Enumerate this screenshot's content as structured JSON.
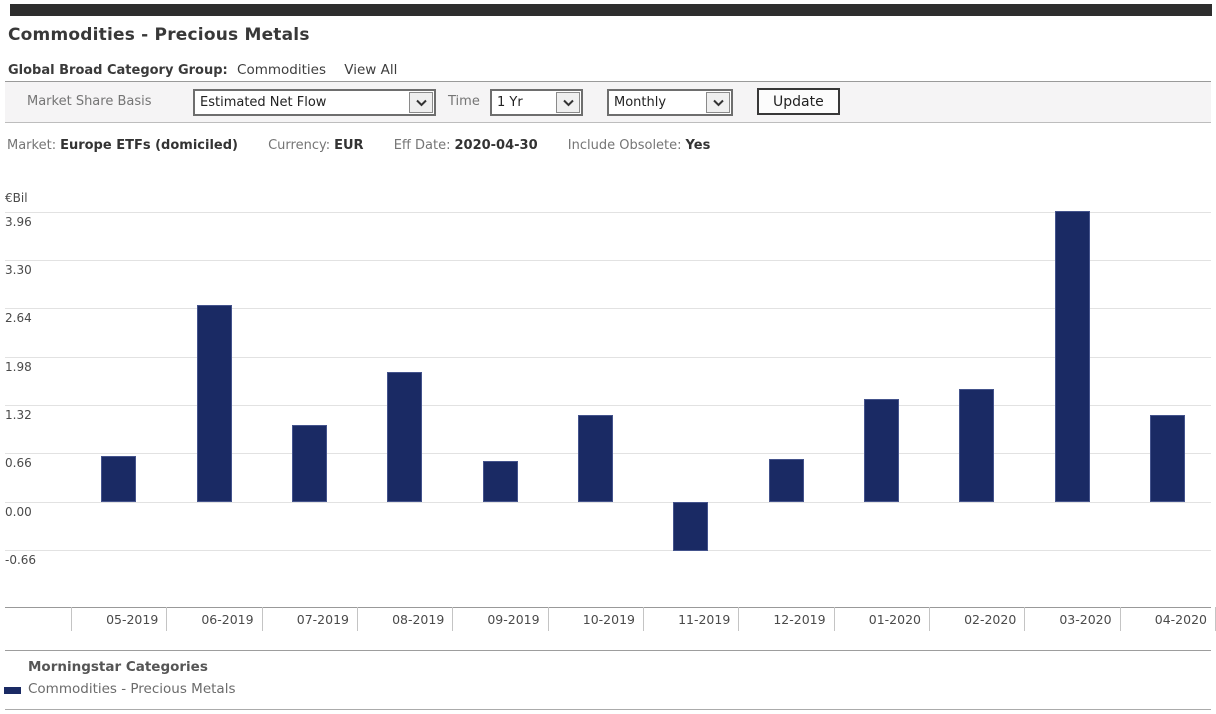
{
  "header": {
    "title": "Commodities - Precious Metals"
  },
  "breadcrumb": {
    "label": "Global Broad Category Group:",
    "value": "Commodities",
    "view_all": "View All"
  },
  "toolbar": {
    "market_share_basis_label": "Market Share Basis",
    "market_share_basis_value": "Estimated Net Flow",
    "time_label": "Time",
    "time_value": "1 Yr",
    "frequency_value": "Monthly",
    "update_label": "Update"
  },
  "info_bar": {
    "items": [
      {
        "label": "Market:",
        "value": "Europe ETFs (domiciled)"
      },
      {
        "label": "Currency:",
        "value": "EUR"
      },
      {
        "label": "Eff Date:",
        "value": "2020-04-30"
      },
      {
        "label": "Include Obsolete:",
        "value": "Yes"
      }
    ]
  },
  "chart_data": {
    "type": "bar",
    "title": "",
    "ylabel": "€Bil",
    "xlabel": "",
    "unit_label": "€Bil",
    "categories": [
      "05-2019",
      "06-2019",
      "07-2019",
      "08-2019",
      "09-2019",
      "10-2019",
      "11-2019",
      "12-2019",
      "01-2020",
      "02-2020",
      "03-2020",
      "04-2020"
    ],
    "series": [
      {
        "name": "Commodities - Precious Metals",
        "values": [
          0.62,
          2.68,
          1.05,
          1.77,
          0.55,
          1.19,
          -0.68,
          0.58,
          1.4,
          1.54,
          3.97,
          1.19
        ]
      }
    ],
    "y_ticks": [
      {
        "label": "3.96",
        "value": 3.96
      },
      {
        "label": "3.30",
        "value": 3.3
      },
      {
        "label": "2.64",
        "value": 2.64
      },
      {
        "label": "1.98",
        "value": 1.98
      },
      {
        "label": "1.32",
        "value": 1.32
      },
      {
        "label": "0.66",
        "value": 0.66
      },
      {
        "label": "0.00",
        "value": 0.0
      },
      {
        "label": "-0.66",
        "value": -0.66
      }
    ],
    "ylim": [
      -0.95,
      4.2
    ],
    "grid": true,
    "legend_position": "bottom",
    "bar_color": "#1a2a64",
    "bar_border_color": "#44538c"
  },
  "legend": {
    "title": "Morningstar Categories",
    "items": [
      {
        "label": "Commodities - Precious Metals",
        "color": "#1a2a64"
      }
    ]
  }
}
